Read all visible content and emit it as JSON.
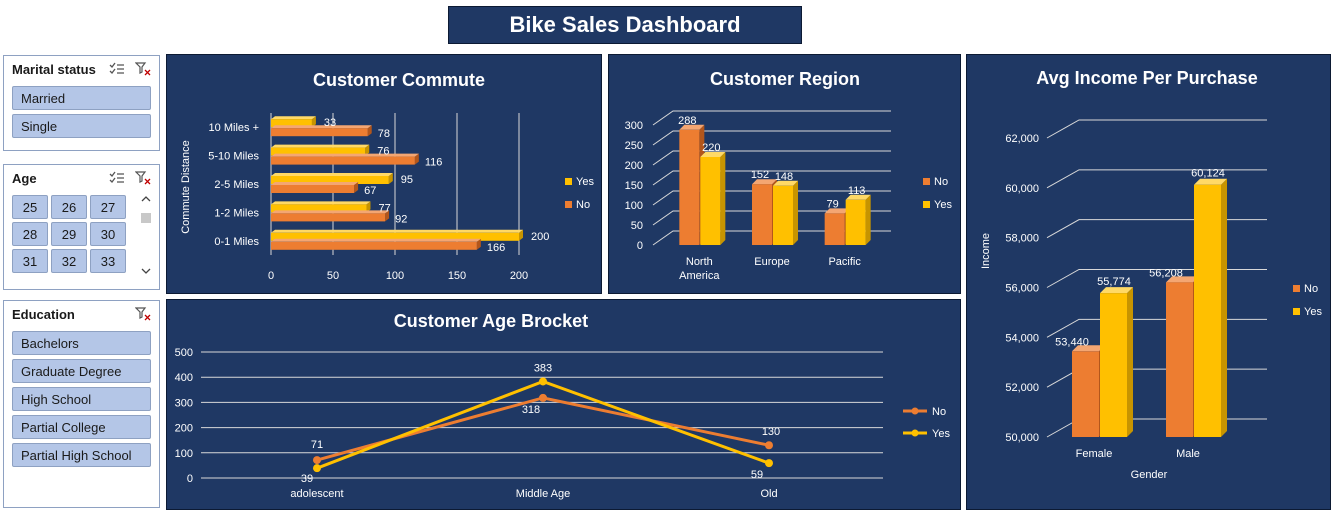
{
  "dashboard": {
    "title": "Bike Sales Dashboard"
  },
  "slicers": {
    "marital": {
      "title": "Marital status",
      "items": [
        "Married",
        "Single"
      ]
    },
    "age": {
      "title": "Age",
      "items": [
        "25",
        "26",
        "27",
        "28",
        "29",
        "30",
        "31",
        "32",
        "33"
      ]
    },
    "education": {
      "title": "Education",
      "items": [
        "Bachelors",
        "Graduate Degree",
        "High School",
        "Partial College",
        "Partial High School"
      ]
    }
  },
  "colors": {
    "no": "#ed7d31",
    "yes": "#ffc000",
    "panel": "#1f3864",
    "slicer_btn": "#b4c6e7"
  },
  "icons": {
    "multi_select": "multi-select-icon",
    "clear_filter": "clear-filter-icon"
  },
  "chart_data": [
    {
      "id": "commute",
      "type": "bar",
      "orientation": "horizontal",
      "title": "Customer Commute",
      "ylabel": "Commute Distance",
      "categories": [
        "0-1 Miles",
        "1-2 Miles",
        "2-5 Miles",
        "5-10 Miles",
        "10 Miles +"
      ],
      "series": [
        {
          "name": "No",
          "values": [
            166,
            92,
            67,
            116,
            78
          ]
        },
        {
          "name": "Yes",
          "values": [
            200,
            77,
            95,
            76,
            33
          ]
        }
      ],
      "xlim": [
        0,
        200
      ],
      "xticks": [
        "0",
        "50",
        "100",
        "150",
        "200"
      ],
      "legend": [
        "Yes",
        "No"
      ],
      "legend_position": "right"
    },
    {
      "id": "region",
      "type": "bar",
      "title": "Customer Region",
      "categories": [
        "North America",
        "Europe",
        "Pacific"
      ],
      "category_lines": [
        [
          "North",
          "America"
        ],
        [
          "Europe"
        ],
        [
          "Pacific"
        ]
      ],
      "series": [
        {
          "name": "No",
          "values": [
            288,
            152,
            79
          ]
        },
        {
          "name": "Yes",
          "values": [
            220,
            148,
            113
          ]
        }
      ],
      "ylim": [
        0,
        300
      ],
      "yticks": [
        "0",
        "50",
        "100",
        "150",
        "200",
        "250",
        "300"
      ],
      "legend": [
        "No",
        "Yes"
      ],
      "legend_position": "right"
    },
    {
      "id": "income",
      "type": "bar",
      "title": "Avg Income Per Purchase",
      "xlabel": "Gender",
      "ylabel": "Income",
      "categories": [
        "Female",
        "Male"
      ],
      "series": [
        {
          "name": "No",
          "values": [
            53440,
            56208
          ]
        },
        {
          "name": "Yes",
          "values": [
            55774,
            60124
          ]
        }
      ],
      "value_labels": [
        [
          "53,440",
          "56,208"
        ],
        [
          "55,774",
          "60,124"
        ]
      ],
      "ylim": [
        50000,
        62000
      ],
      "yticks": [
        "50,000",
        "52,000",
        "54,000",
        "56,000",
        "58,000",
        "60,000",
        "62,000"
      ],
      "legend": [
        "No",
        "Yes"
      ],
      "legend_position": "right"
    },
    {
      "id": "age_bracket",
      "type": "line",
      "title": "Customer Age Brocket",
      "categories": [
        "adolescent",
        "Middle Age",
        "Old"
      ],
      "series": [
        {
          "name": "No",
          "values": [
            71,
            318,
            130
          ]
        },
        {
          "name": "Yes",
          "values": [
            39,
            383,
            59
          ]
        }
      ],
      "ylim": [
        0,
        500
      ],
      "yticks": [
        "0",
        "100",
        "200",
        "300",
        "400",
        "500"
      ],
      "legend": [
        "No",
        "Yes"
      ],
      "legend_position": "right"
    }
  ]
}
